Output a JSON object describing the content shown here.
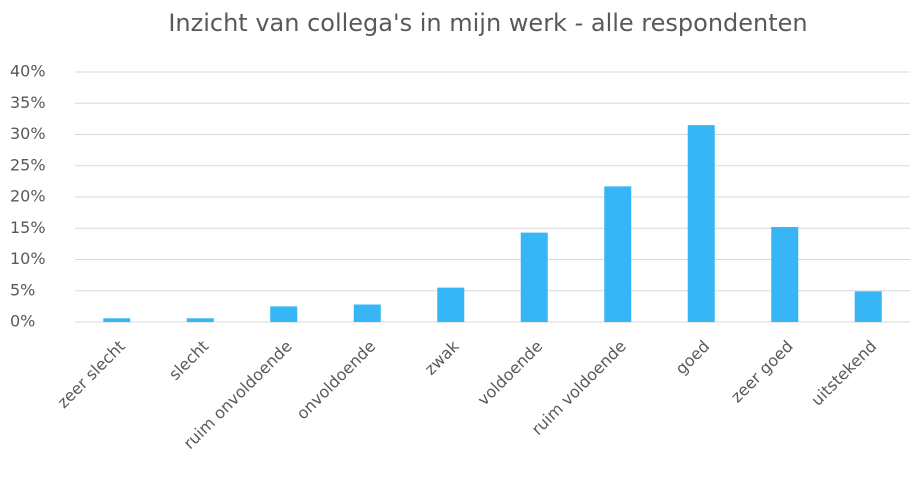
{
  "chart_data": {
    "type": "bar",
    "title": "Inzicht van collega's in mijn werk - alle respondenten",
    "categories": [
      "zeer slecht",
      "slecht",
      "ruim onvoldoende",
      "onvoldoende",
      "zwak",
      "voldoende",
      "ruim voldoende",
      "goed",
      "zeer goed",
      "uitstekend"
    ],
    "values": [
      0.6,
      0.6,
      2.5,
      2.8,
      5.5,
      14.3,
      21.7,
      31.5,
      15.2,
      4.9
    ],
    "color": "#36b5f7",
    "ylim": [
      0,
      40
    ],
    "yticks": [
      {
        "value": 0,
        "label": "0%"
      },
      {
        "value": 5,
        "label": "5%"
      },
      {
        "value": 10,
        "label": "10%"
      },
      {
        "value": 15,
        "label": "15%"
      },
      {
        "value": 20,
        "label": "20%"
      },
      {
        "value": 25,
        "label": "25%"
      },
      {
        "value": 30,
        "label": "30%"
      },
      {
        "value": 35,
        "label": "35%"
      },
      {
        "value": 40,
        "label": "40%"
      }
    ],
    "grid": true
  }
}
